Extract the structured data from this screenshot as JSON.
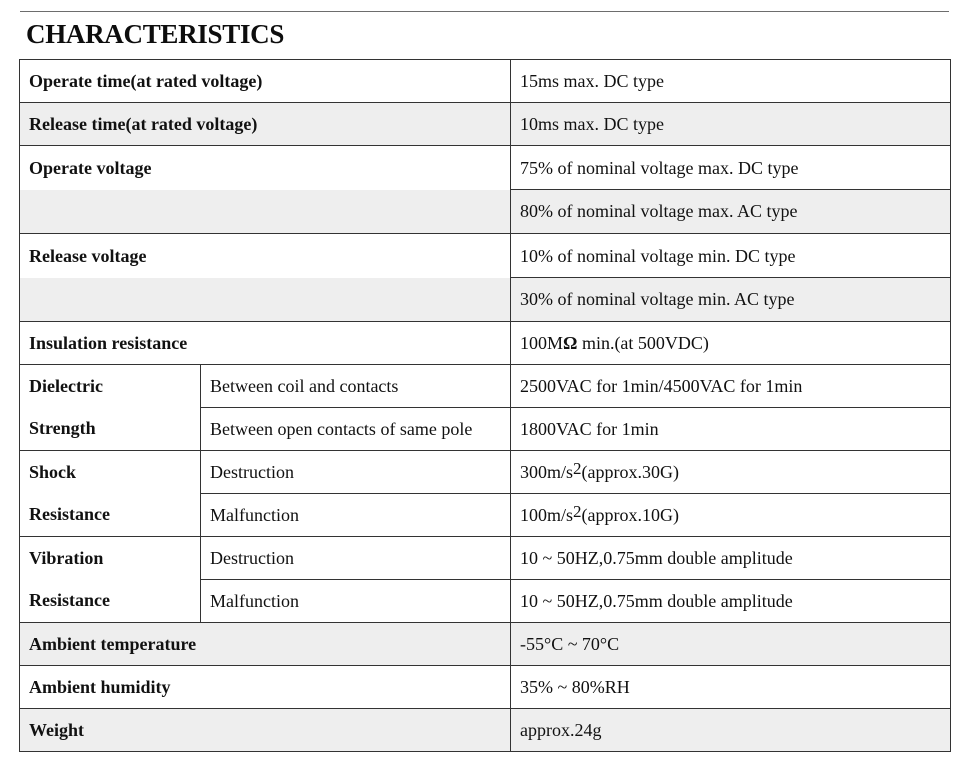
{
  "title": "CHARACTERISTICS",
  "rows": {
    "operate_time": {
      "label": "Operate time(at rated voltage)",
      "value": "15ms max. DC type"
    },
    "release_time": {
      "label": "Release time(at rated voltage)",
      "value": "10ms max. DC type"
    },
    "operate_voltage": {
      "label": "Operate voltage",
      "values": [
        "75% of nominal voltage max. DC type",
        "80% of nominal voltage max. AC type"
      ]
    },
    "release_voltage": {
      "label": "Release voltage",
      "values": [
        "10% of nominal voltage min. DC type",
        "30% of nominal voltage min. AC type"
      ]
    },
    "insulation_resistance": {
      "label": "Insulation resistance",
      "value_prefix": "100M",
      "value_unit": "Ω",
      "value_suffix": " min.(at 500VDC)"
    },
    "dielectric_strength": {
      "label_line1": "Dielectric",
      "label_line2": "Strength",
      "items": [
        {
          "sub": "Between coil and contacts",
          "value": "2500VAC for 1min/4500VAC for 1min"
        },
        {
          "sub": "Between open contacts of same pole",
          "value": "1800VAC for 1min"
        }
      ]
    },
    "shock_resistance": {
      "label_line1": "Shock",
      "label_line2": "Resistance",
      "items": [
        {
          "sub": "Destruction",
          "value_prefix": "300m/s",
          "value_exp": "2",
          "value_suffix": "(approx.30G)"
        },
        {
          "sub": "Malfunction",
          "value_prefix": "100m/s",
          "value_exp": "2",
          "value_suffix": "(approx.10G)"
        }
      ]
    },
    "vibration_resistance": {
      "label_line1": "Vibration",
      "label_line2": "Resistance",
      "items": [
        {
          "sub": "Destruction",
          "value": "10 ~ 50HZ,0.75mm double amplitude"
        },
        {
          "sub": "Malfunction",
          "value": "10 ~ 50HZ,0.75mm double amplitude"
        }
      ]
    },
    "ambient_temperature": {
      "label": "Ambient temperature",
      "value": "-55°C ~ 70°C"
    },
    "ambient_humidity": {
      "label": "Ambient humidity",
      "value": "35% ~ 80%RH"
    },
    "weight": {
      "label": "Weight",
      "value": "approx.24g"
    }
  },
  "colors": {
    "row_shade": "#eeeeee",
    "row_plain": "#ffffff",
    "border": "#333333",
    "top_rule": "#6d6d6d"
  }
}
